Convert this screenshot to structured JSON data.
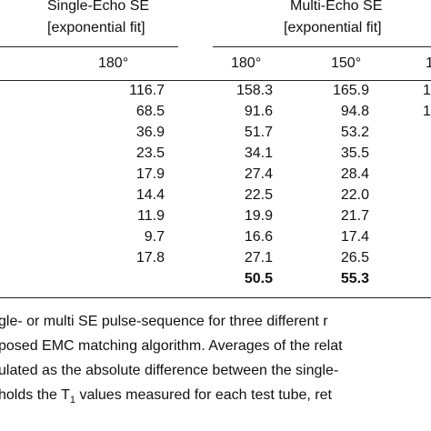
{
  "headers": {
    "single": {
      "line1": "Single-Echo SE",
      "line2": "[exponential fit]"
    },
    "multi": {
      "line1": "Multi-Echo SE",
      "line2": "[exponential fit]"
    }
  },
  "subheaders": {
    "single_180": "180°",
    "multi_180": "180°",
    "multi_150": "150°",
    "cut_col": "1"
  },
  "rows": [
    {
      "single": "116.7",
      "multi180": "158.3",
      "multi150": "165.9",
      "cut": "1"
    },
    {
      "single": "68.5",
      "multi180": "91.6",
      "multi150": "94.8",
      "cut": "1"
    },
    {
      "single": "36.9",
      "multi180": "51.7",
      "multi150": "53.2",
      "cut": ""
    },
    {
      "single": "23.5",
      "multi180": "34.1",
      "multi150": "35.5",
      "cut": ""
    },
    {
      "single": "17.9",
      "multi180": "27.4",
      "multi150": "28.4",
      "cut": ""
    },
    {
      "single": "14.4",
      "multi180": "22.5",
      "multi150": "22.0",
      "cut": ""
    },
    {
      "single": "11.9",
      "multi180": "19.9",
      "multi150": "21.7",
      "cut": ""
    },
    {
      "single": "9.7",
      "multi180": "16.6",
      "multi150": "17.4",
      "cut": ""
    },
    {
      "single": "17.8",
      "multi180": "27.1",
      "multi150": "26.5",
      "cut": ""
    }
  ],
  "average_row": {
    "multi180": "50.5",
    "multi150": "55.3"
  },
  "caption": {
    "line1": "gle- or multi SE pulse-sequence for three different r",
    "line2": "posed EMC matching algorithm. Averages of the relat",
    "line3": "ulated as the absolute difference between the single-",
    "line4_pre": "holds the T",
    "line4_sub": "1",
    "line4_post": " values measured for each test tube, ret"
  }
}
